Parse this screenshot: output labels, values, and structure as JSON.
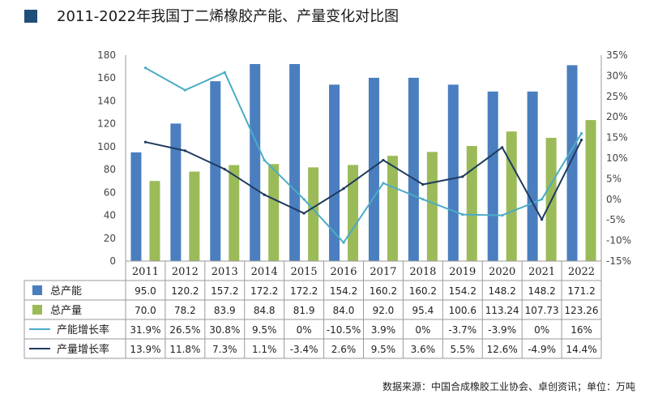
{
  "title": "2011-2022年我国丁二烯橡胶产能、产量变化对比图",
  "source": "数据来源：中国合成橡胶工业协会、卓创资讯；单位：万吨",
  "colors": {
    "capacity_bar": "#4a7ebf",
    "output_bar": "#9bbb59",
    "capacity_growth_line": "#4bacc6",
    "output_growth_line": "#1f3a5f",
    "title_mark": "#1f4e79"
  },
  "chart_data": {
    "type": "bar",
    "categories": [
      "2011",
      "2012",
      "2013",
      "2014",
      "2015",
      "2016",
      "2017",
      "2018",
      "2019",
      "2020",
      "2021",
      "2022"
    ],
    "ylim": [
      0,
      180
    ],
    "yticks": [
      "0",
      "20",
      "40",
      "60",
      "80",
      "100",
      "120",
      "140",
      "160",
      "180"
    ],
    "y2lim": [
      -15,
      35
    ],
    "y2ticks": [
      "35%",
      "30%",
      "25%",
      "20%",
      "15%",
      "10%",
      "5%",
      "0%",
      "-5%",
      "-10%",
      "-15%"
    ],
    "grid": false,
    "legend": "table",
    "series": [
      {
        "name": "总产能",
        "kind": "bar",
        "axis": "left",
        "values": [
          95.0,
          120.2,
          157.2,
          172.2,
          172.2,
          154.2,
          160.2,
          160.2,
          154.2,
          148.2,
          148.2,
          171.2
        ],
        "labels": [
          "95.0",
          "120.2",
          "157.2",
          "172.2",
          "172.2",
          "154.2",
          "160.2",
          "160.2",
          "154.2",
          "148.2",
          "148.2",
          "171.2"
        ]
      },
      {
        "name": "总产量",
        "kind": "bar",
        "axis": "left",
        "values": [
          70.0,
          78.2,
          83.9,
          84.8,
          81.9,
          84.0,
          92.0,
          95.4,
          100.6,
          113.24,
          107.73,
          123.26
        ],
        "labels": [
          "70.0",
          "78.2",
          "83.9",
          "84.8",
          "81.9",
          "84.0",
          "92.0",
          "95.4",
          "100.6",
          "113.24",
          "107.73",
          "123.26"
        ]
      },
      {
        "name": "产能增长率",
        "kind": "line",
        "axis": "right",
        "values": [
          31.9,
          26.5,
          30.8,
          9.5,
          0,
          -10.5,
          3.9,
          0,
          -3.7,
          -3.9,
          0,
          16
        ],
        "labels": [
          "31.9%",
          "26.5%",
          "30.8%",
          "9.5%",
          "0%",
          "-10.5%",
          "3.9%",
          "0%",
          "-3.7%",
          "-3.9%",
          "0%",
          "16%"
        ]
      },
      {
        "name": "产量增长率",
        "kind": "line",
        "axis": "right",
        "values": [
          13.9,
          11.8,
          7.3,
          1.1,
          -3.4,
          2.6,
          9.5,
          3.6,
          5.5,
          12.6,
          -4.9,
          14.4
        ],
        "labels": [
          "13.9%",
          "11.8%",
          "7.3%",
          "1.1%",
          "-3.4%",
          "2.6%",
          "9.5%",
          "3.6%",
          "5.5%",
          "12.6%",
          "-4.9%",
          "14.4%"
        ]
      }
    ]
  }
}
